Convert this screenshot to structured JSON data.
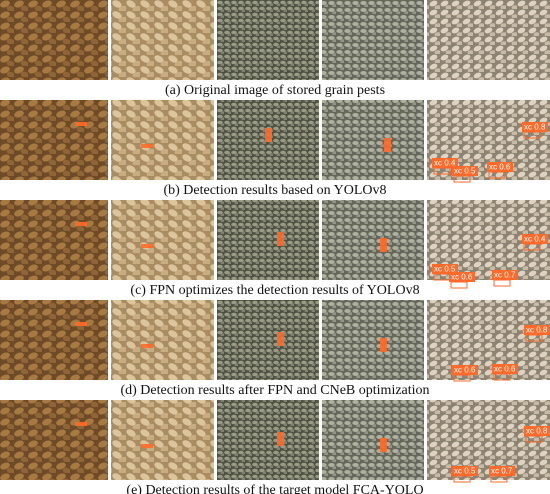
{
  "panels": [
    {
      "caption": "(a) Original image of stored grain pests",
      "detections": []
    },
    {
      "caption": "(b) Detection results based on YOLOv8",
      "detections": [
        "xc 0.8",
        "xc 0.4",
        "xc 0.5",
        "xc 0.6"
      ]
    },
    {
      "caption": "(c) FPN optimizes the detection results of YOLOv8",
      "detections": [
        "xc 0.4",
        "xc 0.5",
        "xc 0.6",
        "xc 0.7"
      ]
    },
    {
      "caption": "(d) Detection results after FPN and CNeB optimization",
      "detections": [
        "xc 0.8",
        "xc 0.6",
        "xc 0.6"
      ]
    },
    {
      "caption": "(e) Detection results of the target model FCA-YOLO",
      "detections": [
        "xc 0.8",
        "xc 0.5",
        "xc 0.7"
      ]
    }
  ]
}
